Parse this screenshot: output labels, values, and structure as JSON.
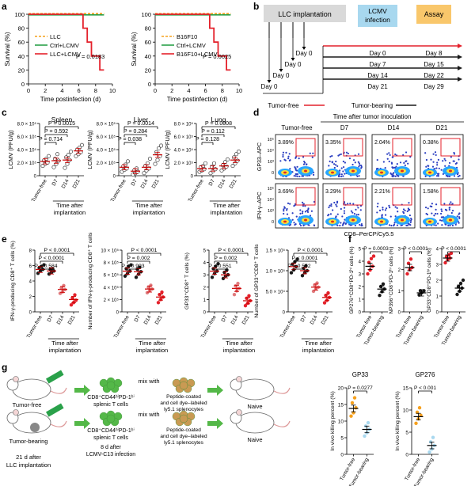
{
  "panel_labels": [
    "a",
    "b",
    "c",
    "d",
    "e",
    "f",
    "g"
  ],
  "colors": {
    "red": "#e4212b",
    "orange": "#f6a01c",
    "green": "#2aa14a",
    "black": "#1a1a1a",
    "pink": "#c79a9c",
    "grey": "#d9d9d9",
    "ltblue": "#a8d8ef",
    "ltorange": "#f9c76b",
    "blue": "#5aaee0",
    "cellgreen": "#54b848",
    "tan": "#c99a53",
    "dot_teal": "#27a8a1",
    "dot_grey": "#6e7b80",
    "dot_red": "#e07a7d",
    "dot_dark": "#404040"
  },
  "a": {
    "ylabel": "Survival (%)",
    "xlabel": "Time postinfection (d)",
    "left": {
      "chart_data": {
        "type": "line",
        "x": [
          0,
          2,
          4,
          6,
          6.5,
          7,
          7.5,
          8,
          8.5,
          9
        ],
        "ylim": [
          0,
          100
        ],
        "xlim": [
          0,
          10
        ],
        "yticks": [
          "0",
          "20",
          "40",
          "60",
          "80",
          "100"
        ],
        "xticks": [
          "0",
          "2",
          "4",
          "6",
          "8",
          "10"
        ],
        "series": [
          {
            "name": "LLC",
            "color": "#f6a01c",
            "values": [
              100,
              100,
              100,
              100,
              100,
              100,
              100,
              100,
              100,
              100
            ]
          },
          {
            "name": "Ctrl+LCMV",
            "color": "#2aa14a",
            "values": [
              100,
              100,
              100,
              100,
              100,
              100,
              100,
              100,
              100,
              100
            ]
          },
          {
            "name": "LLC+LCMV",
            "color": "#e4212b",
            "values": [
              100,
              100,
              100,
              100,
              80,
              60,
              40,
              40,
              20,
              20
            ]
          }
        ],
        "annotation": "P = 0.0183"
      }
    },
    "right": {
      "chart_data": {
        "type": "line",
        "x": [
          0,
          2,
          4,
          6,
          6.5,
          7,
          7.5,
          8,
          8.5,
          9
        ],
        "ylim": [
          0,
          100
        ],
        "xlim": [
          0,
          10
        ],
        "yticks": [
          "0",
          "20",
          "40",
          "60",
          "80",
          "100"
        ],
        "xticks": [
          "0",
          "2",
          "4",
          "6",
          "8",
          "10"
        ],
        "series": [
          {
            "name": "B16F10",
            "color": "#f6a01c",
            "values": [
              100,
              100,
              100,
              100,
              100,
              100,
              100,
              100,
              100,
              100
            ]
          },
          {
            "name": "Ctrl+LCMV",
            "color": "#2aa14a",
            "values": [
              100,
              100,
              100,
              100,
              100,
              100,
              100,
              100,
              100,
              100
            ]
          },
          {
            "name": "B16F10+LCMV",
            "color": "#e4212b",
            "values": [
              100,
              100,
              100,
              100,
              80,
              60,
              40,
              40,
              20,
              20
            ]
          }
        ],
        "annotation": "P = 0.0025"
      }
    }
  },
  "b": {
    "llc_box": "LLC implantation",
    "lcmv_box": "LCMV infection",
    "assay_box": "Assay",
    "rows": [
      {
        "day0": "Day 0",
        "lcmv": "Day 0",
        "assay": "Day 8",
        "color": "#e4212b"
      },
      {
        "day0": "Day 0",
        "lcmv": "Day 7",
        "assay": "Day 15",
        "color": "#1a1a1a"
      },
      {
        "day0": "Day 0",
        "lcmv": "Day 14",
        "assay": "Day 22",
        "color": "#1a1a1a"
      },
      {
        "day0": "Day 0",
        "lcmv": "Day 21",
        "assay": "Day 29",
        "color": "#1a1a1a"
      }
    ],
    "legend_free": "Tumor-free",
    "legend_bearing": "Tumor-bearing"
  },
  "c": {
    "ylabel": "LCMV (PFU/g)",
    "xlabel_line1": "Time after",
    "xlabel_line2": "implantation",
    "categories": [
      "Tumor-free",
      "D7",
      "D14",
      "D21"
    ],
    "yticks": [
      "0",
      "2.0 × 10⁵",
      "4.0 × 10⁵",
      "6.0 × 10⁵",
      "8.0 × 10⁵"
    ],
    "charts": [
      {
        "title": "Spleen",
        "chart_data": {
          "type": "scatter",
          "ylim": [
            0,
            800000
          ],
          "means": [
            220000,
            230000,
            240000,
            380000
          ],
          "points": [
            [
              150000,
              180000,
              200000,
              230000,
              260000,
              300000
            ],
            [
              130000,
              180000,
              230000,
              260000,
              330000
            ],
            [
              120000,
              180000,
              240000,
              280000,
              320000,
              370000
            ],
            [
              300000,
              330000,
              360000,
              400000,
              430000,
              470000
            ]
          ]
        },
        "p": [
          "P = 0.0015",
          "P = 0.592",
          "P = 0.714"
        ]
      },
      {
        "title": "Liver",
        "chart_data": {
          "type": "scatter",
          "ylim": [
            0,
            800000
          ],
          "means": [
            130000,
            70000,
            130000,
            320000
          ],
          "points": [
            [
              60000,
              90000,
              110000,
              140000,
              170000,
              220000
            ],
            [
              20000,
              40000,
              60000,
              80000,
              110000
            ],
            [
              40000,
              80000,
              110000,
              150000,
              190000,
              260000
            ],
            [
              180000,
              240000,
              300000,
              360000,
              420000,
              460000
            ]
          ]
        },
        "p": [
          "P = 0.0014",
          "P = 0.284",
          "P = 0.038"
        ]
      },
      {
        "title": "Lung",
        "chart_data": {
          "type": "scatter",
          "ylim": [
            0,
            800000
          ],
          "means": [
            110000,
            110000,
            150000,
            240000
          ],
          "points": [
            [
              60000,
              80000,
              100000,
              130000,
              150000,
              190000
            ],
            [
              40000,
              70000,
              100000,
              140000,
              190000
            ],
            [
              80000,
              110000,
              140000,
              160000,
              210000,
              250000
            ],
            [
              150000,
              190000,
              230000,
              280000,
              330000,
              370000
            ]
          ]
        },
        "p": [
          "P = 0.0008",
          "P = 0.112",
          "P = 0.128"
        ]
      }
    ]
  },
  "d": {
    "header": "Time after tumor inoculation",
    "cols": [
      "Tumor-free",
      "D7",
      "D14",
      "D21"
    ],
    "row1_ylabel": "GP33–APC",
    "row2_ylabel": "IFN-γ–APC",
    "xlabel": "CD8–PerCP/Cy5.5",
    "row1_pct": [
      "3.89%",
      "3.35%",
      "2.04%",
      "0.38%"
    ],
    "row2_pct": [
      "3.69%",
      "3.29%",
      "2.21%",
      "1.58%"
    ],
    "ticks": [
      "10⁵",
      "10⁴",
      "10³",
      "0"
    ]
  },
  "e": {
    "xlabel_line1": "Time after",
    "xlabel_line2": "implantation",
    "categories": [
      "Tumor-free",
      "D7",
      "D14",
      "D21"
    ],
    "charts": [
      {
        "ylabel": "IFN-γ-producing CD8⁺ T cells (%)",
        "yticks": [
          "0",
          "2",
          "4",
          "6",
          "8"
        ],
        "chart_data": {
          "type": "scatter",
          "ylim": [
            0,
            8
          ],
          "means": [
            5.5,
            5.3,
            2.9,
            1.6
          ],
          "points": [
            [
              5.0,
              5.3,
              5.5,
              5.7,
              5.9,
              6.1
            ],
            [
              4.9,
              5.1,
              5.3,
              5.5,
              5.6
            ],
            [
              2.4,
              2.6,
              2.9,
              3.1,
              3.4
            ],
            [
              0.9,
              1.2,
              1.5,
              1.8,
              2.2
            ]
          ]
        },
        "p": [
          "P < 0.0001",
          "P < 0.0001",
          "P = 0.584"
        ]
      },
      {
        "ylabel": "Number of IFN-γ-producing CD8⁺ T cells",
        "yticks": [
          "0",
          "2 × 10⁵",
          "4 × 10⁵",
          "6 × 10⁵",
          "8 × 10⁵",
          "10 × 10⁵"
        ],
        "chart_data": {
          "type": "scatter",
          "ylim": [
            0,
            1000000
          ],
          "means": [
            660000,
            650000,
            370000,
            240000
          ],
          "points": [
            [
              580000,
              620000,
              660000,
              700000,
              740000,
              760000
            ],
            [
              560000,
              610000,
              650000,
              690000,
              720000
            ],
            [
              310000,
              340000,
              370000,
              400000,
              430000
            ],
            [
              150000,
              200000,
              240000,
              280000,
              320000
            ]
          ]
        },
        "p": [
          "P < 0.0001",
          "P = 0.002",
          "P = 0.993"
        ]
      },
      {
        "ylabel": "GP33⁺CD8⁺ T cells (%)",
        "yticks": [
          "0",
          "1",
          "2",
          "3",
          "4",
          "5"
        ],
        "chart_data": {
          "type": "scatter",
          "ylim": [
            0,
            5
          ],
          "means": [
            3.3,
            3.0,
            1.9,
            0.9
          ],
          "points": [
            [
              2.8,
              3.1,
              3.3,
              3.5,
              3.7,
              3.9
            ],
            [
              2.7,
              2.9,
              3.0,
              3.2,
              3.4
            ],
            [
              1.4,
              1.7,
              1.9,
              2.1,
              2.3
            ],
            [
              0.5,
              0.7,
              0.9,
              1.1,
              1.3
            ]
          ]
        },
        "p": [
          "P < 0.0001",
          "P = 0.002",
          "P = 0.551"
        ]
      },
      {
        "ylabel": "Number of GP33⁺CD8⁺ T cells",
        "yticks": [
          "0",
          "5.0 × 10⁴",
          "1.0 × 10⁵",
          "1.5 × 10⁵"
        ],
        "chart_data": {
          "type": "scatter",
          "ylim": [
            0,
            150000
          ],
          "means": [
            110000,
            100000,
            60000,
            35000
          ],
          "points": [
            [
              95000,
              102000,
              110000,
              116000,
              122000,
              128000
            ],
            [
              88000,
              95000,
              100000,
              106000,
              112000
            ],
            [
              50000,
              56000,
              60000,
              65000,
              70000
            ],
            [
              22000,
              28000,
              35000,
              40000,
              46000
            ]
          ]
        },
        "p": [
          "P < 0.0001",
          "P < 0.0001",
          "P = 0.552"
        ]
      }
    ]
  },
  "f": {
    "categories": [
      "Tumor-free",
      "Tumor-bearing"
    ],
    "charts": [
      {
        "ylabel": "GP276⁺CD8⁺PD-1ʰⁱ cells (%)",
        "yticks": [
          "0",
          "1",
          "2",
          "3",
          "4",
          "5"
        ],
        "chart_data": {
          "type": "scatter",
          "ylim": [
            0,
            5
          ],
          "means": [
            3.6,
            1.8
          ],
          "points": [
            [
              3.0,
              3.3,
              3.6,
              3.9,
              4.2,
              4.4
            ],
            [
              1.3,
              1.6,
              1.8,
              2.0,
              2.2
            ]
          ]
        },
        "p": "P = 0.0003"
      },
      {
        "ylabel": "NP396⁺CD8⁺PD-1ʰⁱ cells (%)",
        "yticks": [
          "0",
          "1",
          "2",
          "3"
        ],
        "chart_data": {
          "type": "scatter",
          "ylim": [
            0,
            3
          ],
          "means": [
            2.1,
            0.9
          ],
          "points": [
            [
              1.8,
              2.0,
              2.1,
              2.3,
              2.5
            ],
            [
              0.8,
              0.9,
              1.0,
              1.0
            ]
          ]
        },
        "p": "P < 0.0001"
      },
      {
        "ylabel": "GP33⁺CD8⁺PD-1ʰⁱ cells (%)",
        "yticks": [
          "0",
          "1",
          "2",
          "3",
          "4"
        ],
        "chart_data": {
          "type": "scatter",
          "ylim": [
            0,
            4
          ],
          "means": [
            3.4,
            1.5
          ],
          "points": [
            [
              3.1,
              3.3,
              3.4,
              3.5,
              3.6,
              3.7
            ],
            [
              1.1,
              1.3,
              1.5,
              1.6,
              1.8,
              2.0
            ]
          ]
        },
        "p": "P < 0.0001"
      }
    ]
  },
  "g": {
    "mouse_free": "Tumor-free",
    "mouse_bearing": "Tumor-bearing",
    "days_line1": "21 d after",
    "days_line2": "LLC implantation",
    "cells1_line1": "CD8⁺CD44ʰⁱPD-1ʰⁱ",
    "cells1_line2": "splenic T cells",
    "cells2_line1": "CD8⁺CD44ʰⁱPD-1ʰⁱ",
    "cells2_line2": "splenic T cells",
    "infection_line1": "8 d after",
    "infection_line2": "LCMV-C13 infection",
    "mix_with": "mix with",
    "peptide_line1": "Peptide-coated",
    "peptide_line2": "and cell dye–labeled",
    "peptide_line3": "ly5.1 splenocytes",
    "naive": "Naive",
    "charts": [
      {
        "title": "GP33",
        "ylabel": "In vivo killing percent (%)",
        "yticks": [
          "0",
          "5",
          "10",
          "15",
          "20"
        ],
        "chart_data": {
          "type": "scatter",
          "ylim": [
            0,
            20
          ],
          "means": [
            13.8,
            7.5
          ],
          "points": [
            [
              11.5,
              12.5,
              14.0,
              15.5,
              17.0
            ],
            [
              5.5,
              6.5,
              7.5,
              8.5,
              9.5
            ]
          ]
        },
        "p": "P = 0.0277"
      },
      {
        "title": "GP276",
        "ylabel": "In vivo killing percent (%)",
        "yticks": [
          "0",
          "5",
          "10",
          "15"
        ],
        "chart_data": {
          "type": "scatter",
          "ylim": [
            0,
            15
          ],
          "means": [
            8.5,
            2.0
          ],
          "points": [
            [
              7.0,
              8.0,
              8.8,
              9.5,
              10.5
            ],
            [
              0.5,
              1.2,
              2.0,
              2.8,
              3.8
            ]
          ]
        },
        "p": "P < 0.001"
      }
    ],
    "categories": [
      "Tumor-free",
      "Tumor-bearing"
    ]
  }
}
